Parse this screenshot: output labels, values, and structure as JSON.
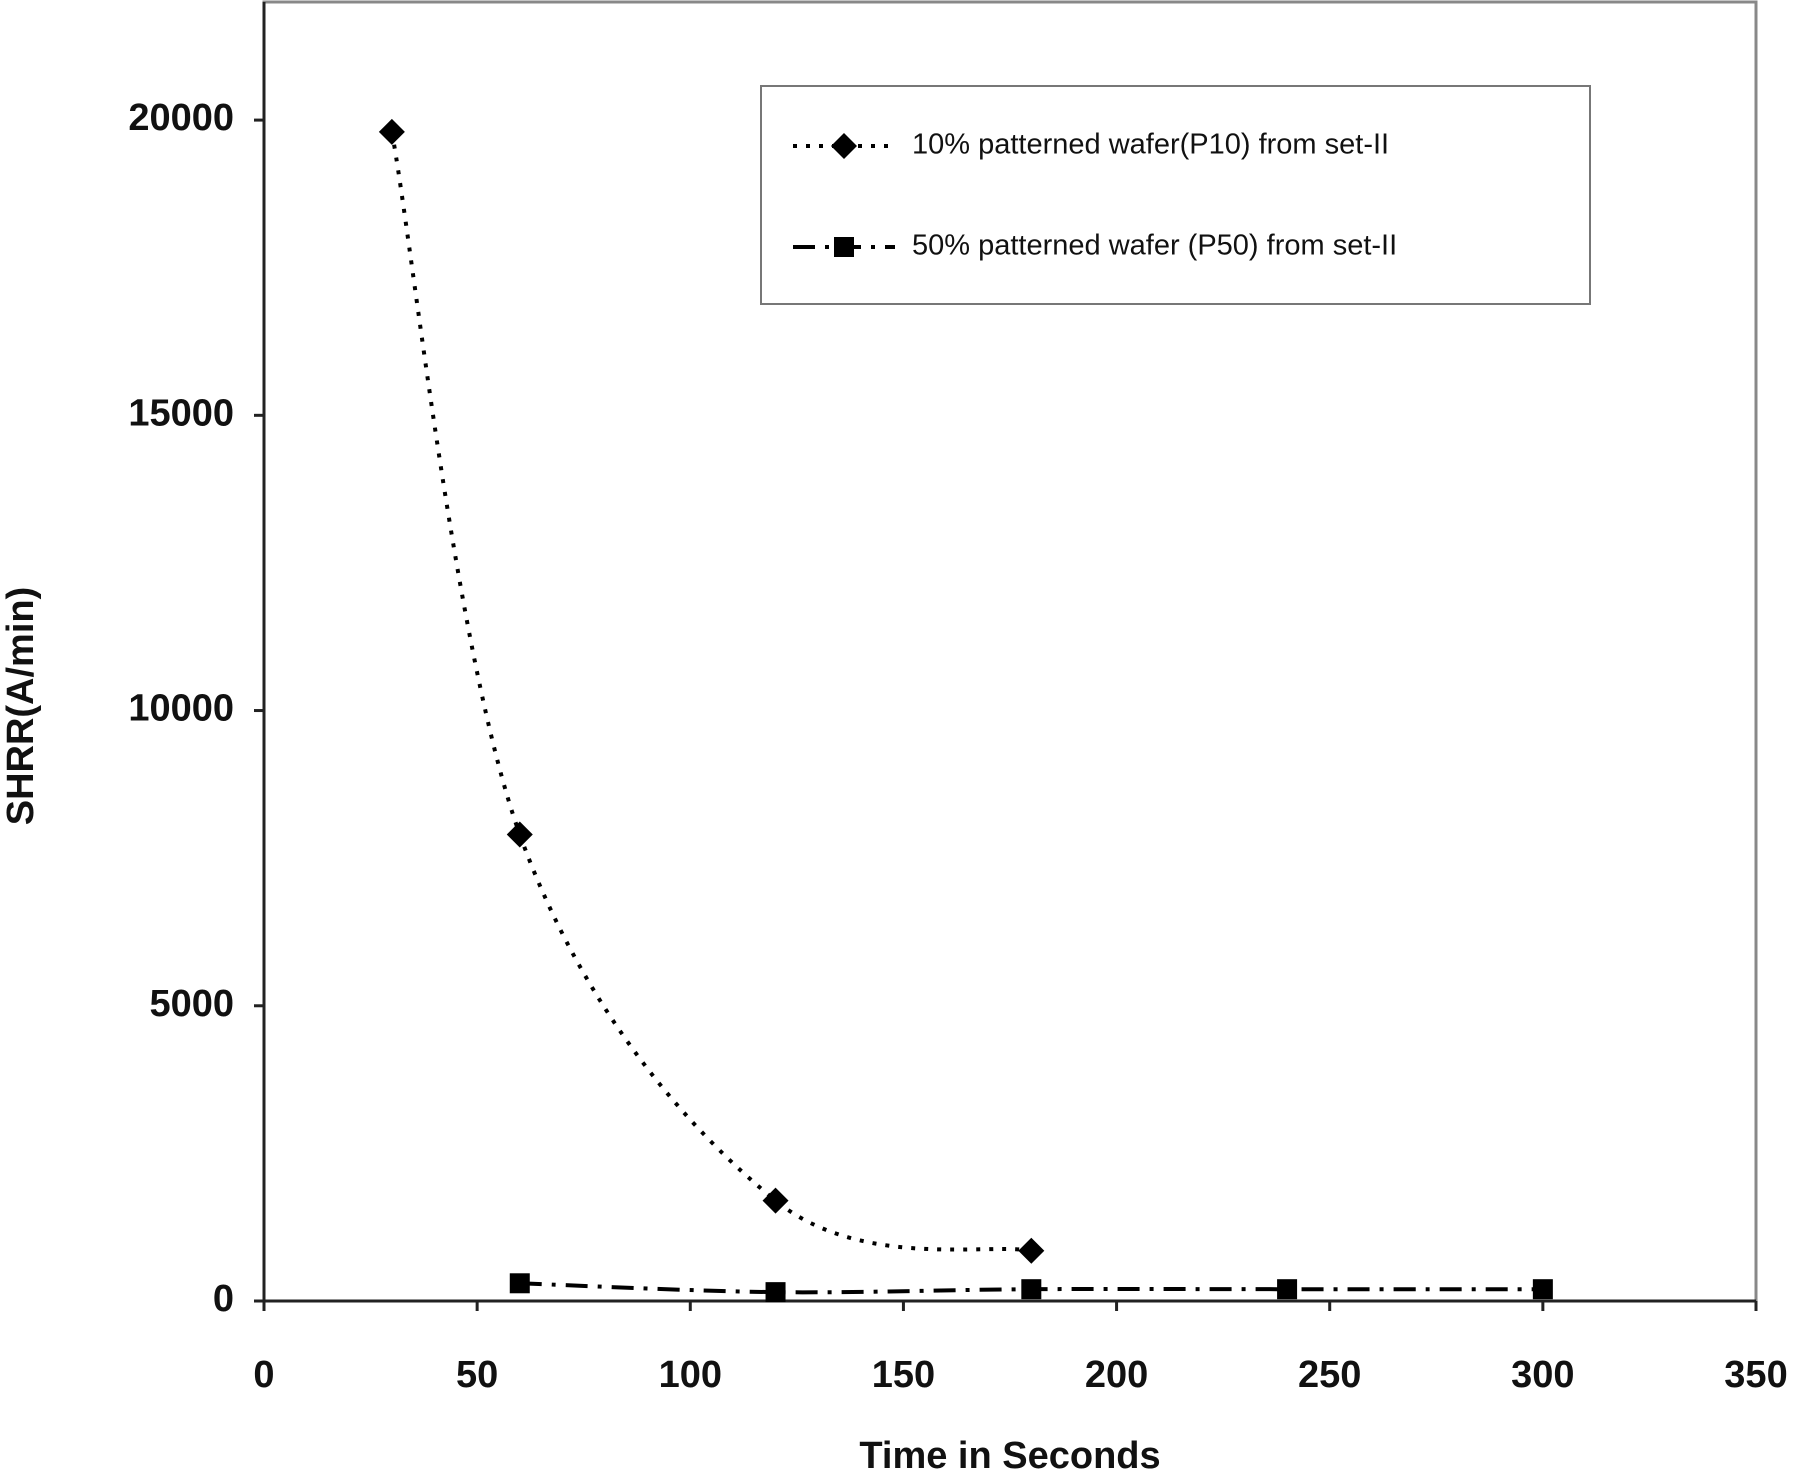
{
  "chart_data": {
    "type": "line",
    "x_label": "Time in Seconds",
    "y_label": "SHRR(A/min)",
    "xlim": [
      0,
      350
    ],
    "xticks": [
      0,
      50,
      100,
      150,
      200,
      250,
      300,
      350
    ],
    "ylim": [
      0,
      22000
    ],
    "yticks": [
      0,
      5000,
      10000,
      15000,
      20000
    ],
    "smooth": true,
    "grid": false,
    "series": [
      {
        "name": "10% patterned wafer(P10) from set-II",
        "color": "#000000",
        "marker": "diamond",
        "dash": "dotted",
        "x": [
          30,
          60,
          120,
          180
        ],
        "values": [
          19800,
          7900,
          1700,
          850
        ]
      },
      {
        "name": "50% patterned wafer (P50) from set-II",
        "color": "#000000",
        "marker": "square",
        "dash": "dash-dot",
        "x": [
          60,
          120,
          180,
          240,
          300
        ],
        "values": [
          300,
          150,
          200,
          200,
          200
        ]
      }
    ]
  }
}
